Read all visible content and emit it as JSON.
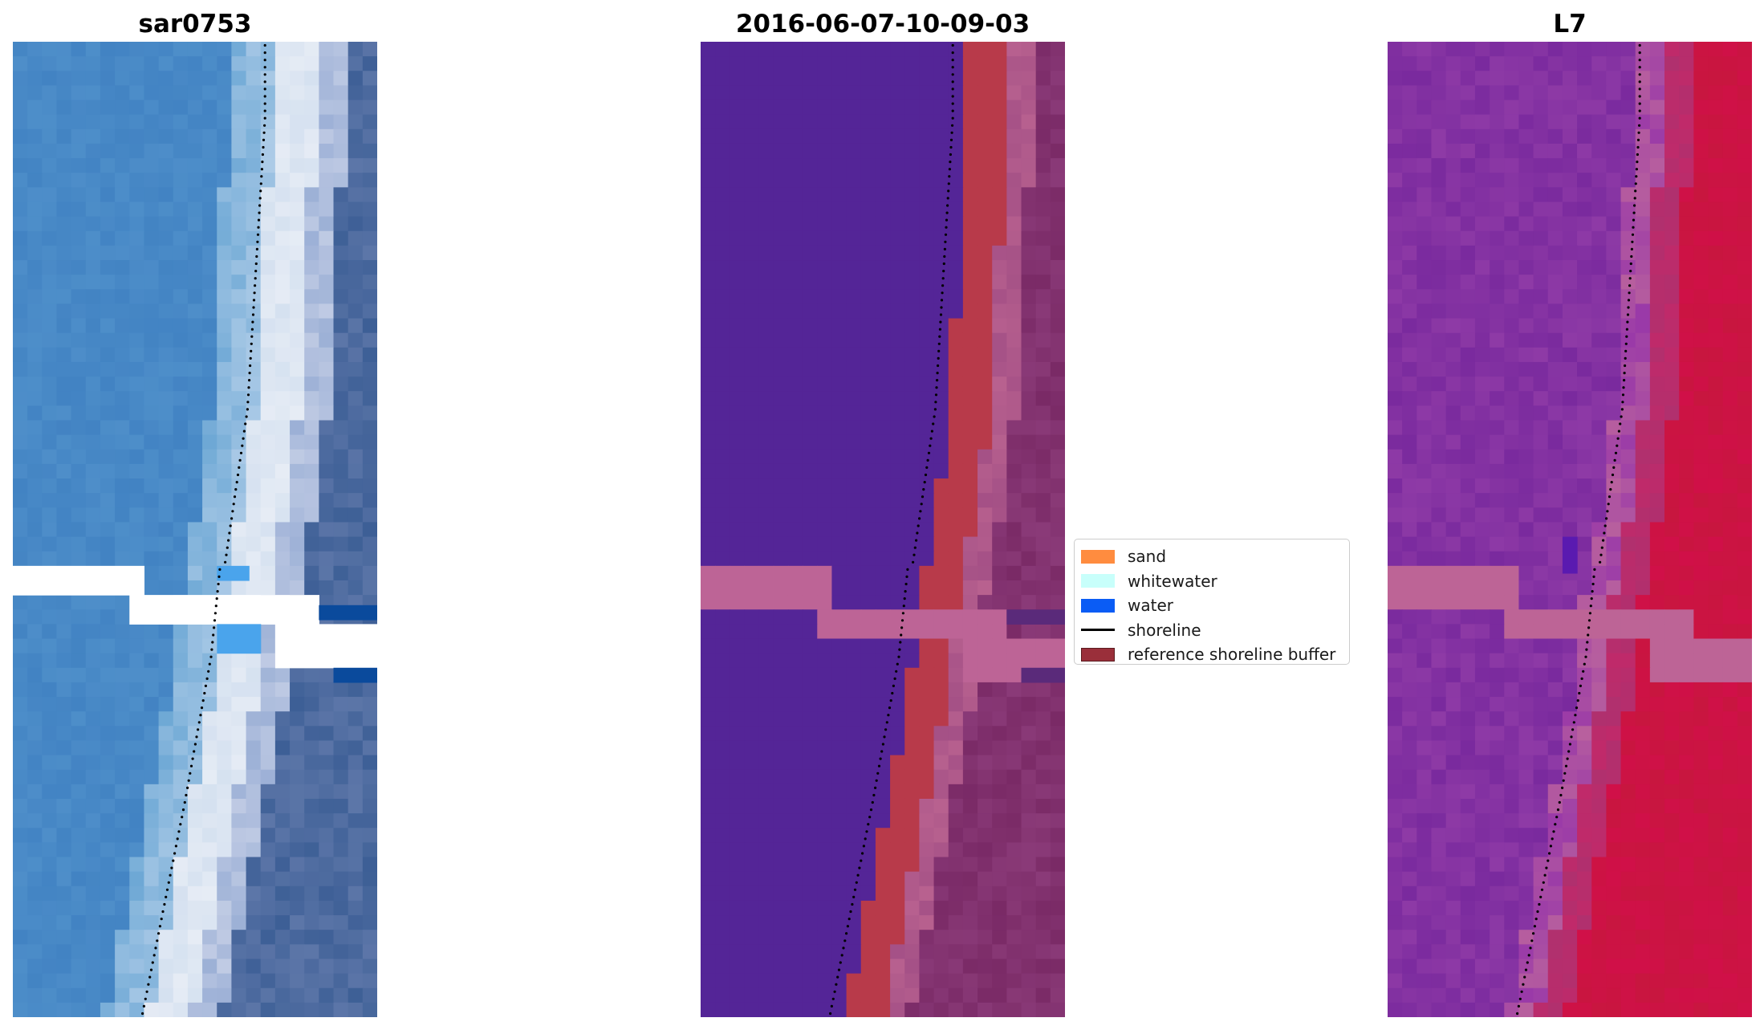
{
  "panels": [
    {
      "title": "sar0753"
    },
    {
      "title": "2016-06-07-10-09-03"
    },
    {
      "title": "L7"
    }
  ],
  "legend": {
    "items": [
      {
        "label": "sand",
        "color": "#ff8c3f",
        "kind": "patch"
      },
      {
        "label": "whitewater",
        "color": "#c8fffb",
        "kind": "patch"
      },
      {
        "label": "water",
        "color": "#0a5cf5",
        "kind": "patch"
      },
      {
        "label": "shoreline",
        "color": "#000000",
        "kind": "line"
      },
      {
        "label": "reference shoreline buffer",
        "color": "#9a2f3a",
        "kind": "patch",
        "edge": "#5a1a1e"
      }
    ]
  },
  "colors": {
    "buffer_overlay": "#bd6496",
    "classified_water": "#542597",
    "classified_buffer": "#b83a4a",
    "l7_purple": "#7a2a9e",
    "l7_red": "#c8163f",
    "rgb_water": "#4283c3",
    "rgb_foam": "#e6ecf5",
    "rgb_deep": "#3d5f96"
  }
}
